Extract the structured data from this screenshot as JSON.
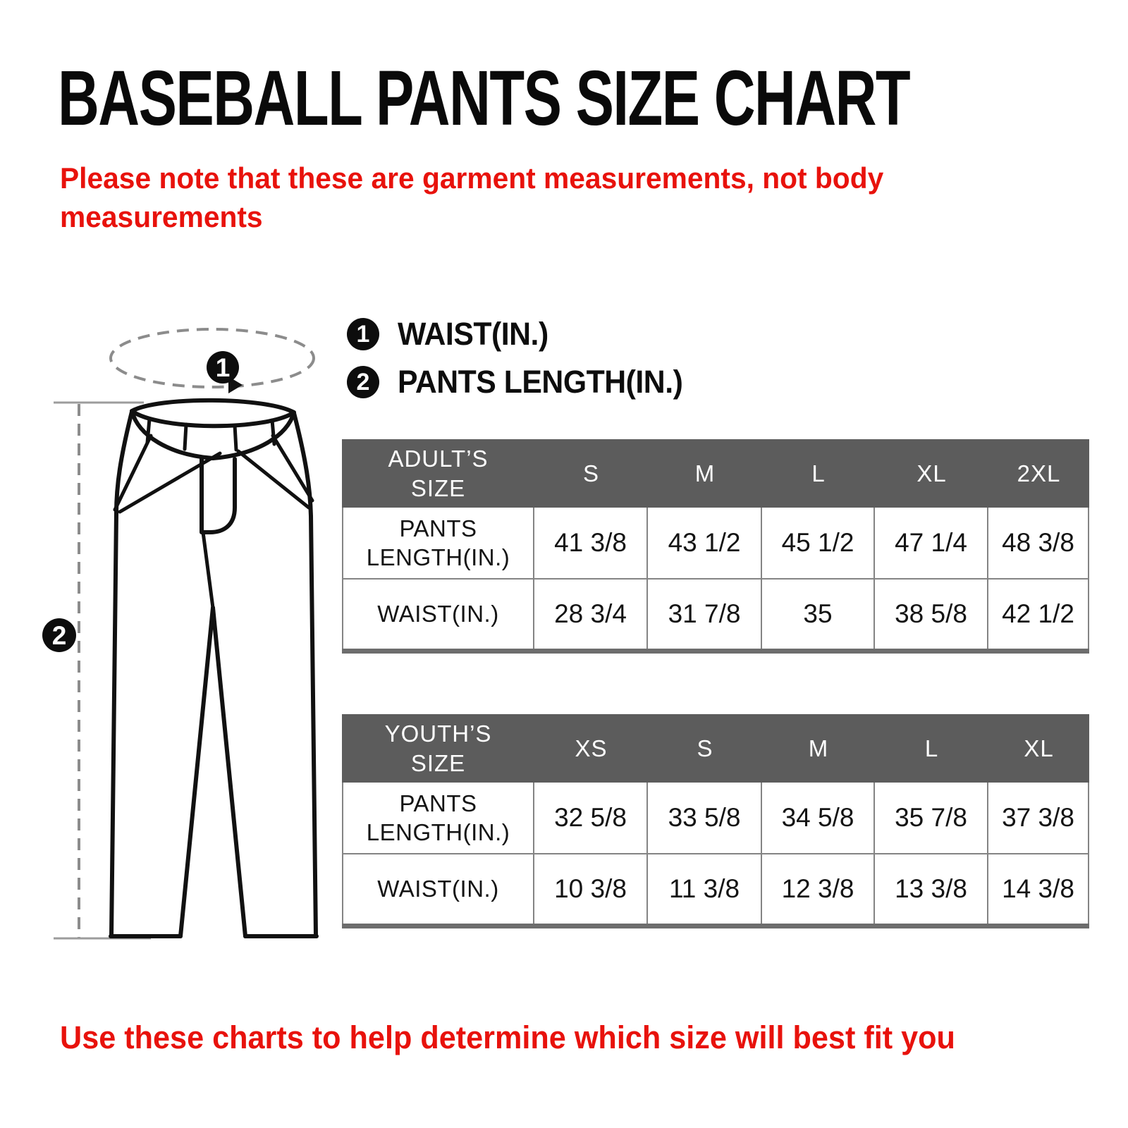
{
  "page": {
    "title": "BASEBALL PANTS SIZE CHART",
    "note": "Please note that these are garment measurements, not body\nmeasurements",
    "footer": "Use these charts to help determine which size will best fit you"
  },
  "colors": {
    "accent_red": "#e8120c",
    "table_header_gray": "#5c5c5c",
    "table_border_gray": "#848484"
  },
  "legend": {
    "items": [
      {
        "marker": "1",
        "label": "WAIST(IN.)"
      },
      {
        "marker": "2",
        "label": "PANTS LENGTH(IN.)"
      }
    ]
  },
  "diagram": {
    "waist_marker": "1",
    "length_marker": "2"
  },
  "tables": [
    {
      "id": "adults",
      "header_label": "ADULT’S\nSIZE",
      "columns": [
        "S",
        "M",
        "L",
        "XL",
        "2XL"
      ],
      "rows": [
        {
          "label": "PANTS\nLENGTH(IN.)",
          "values": [
            "41 3/8",
            "43 1/2",
            "45 1/2",
            "47 1/4",
            "48 3/8"
          ]
        },
        {
          "label": "WAIST(IN.)",
          "values": [
            "28 3/4",
            "31 7/8",
            "35",
            "38 5/8",
            "42 1/2"
          ]
        }
      ]
    },
    {
      "id": "youths",
      "header_label": "YOUTH’S\nSIZE",
      "columns": [
        "XS",
        "S",
        "M",
        "L",
        "XL"
      ],
      "rows": [
        {
          "label": "PANTS\nLENGTH(IN.)",
          "values": [
            "32 5/8",
            "33 5/8",
            "34 5/8",
            "35 7/8",
            "37 3/8"
          ]
        },
        {
          "label": "WAIST(IN.)",
          "values": [
            "10 3/8",
            "11 3/8",
            "12 3/8",
            "13 3/8",
            "14 3/8"
          ]
        }
      ]
    }
  ]
}
